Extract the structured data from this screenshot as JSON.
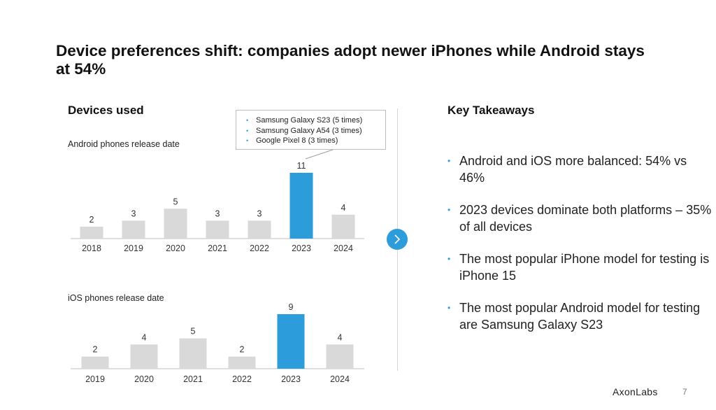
{
  "slide": {
    "title": "Device preferences shift: companies adopt newer iPhones while Android stays at 54%",
    "devices_heading": "Devices used",
    "takeaways_heading": "Key Takeaways",
    "brand": "AxonLabs",
    "page_number": "7"
  },
  "colors": {
    "bar_default": "#d9d9d9",
    "bar_highlight": "#2d9cdb",
    "accent": "#2d9cdb"
  },
  "callout": {
    "items": [
      "Samsung Galaxy S23 (5 times)",
      "Samsung Galaxy A54 (3 times)",
      "Google Pixel 8 (3 times)"
    ]
  },
  "takeaways": [
    "Android and iOS more balanced: 54% vs 46%",
    "2023 devices dominate both platforms – 35% of all devices",
    "The most popular iPhone model for testing is iPhone 15",
    "The most popular Android model for testing are Samsung Galaxy S23"
  ],
  "chart_data": [
    {
      "type": "bar",
      "title": "Android phones release date",
      "categories": [
        "2018",
        "2019",
        "2020",
        "2021",
        "2022",
        "2023",
        "2024"
      ],
      "values": [
        2,
        3,
        5,
        3,
        3,
        11,
        4
      ],
      "highlight": "2023",
      "ylim": [
        0,
        11
      ]
    },
    {
      "type": "bar",
      "title": "iOS phones release date",
      "categories": [
        "2019",
        "2020",
        "2021",
        "2022",
        "2023",
        "2024"
      ],
      "values": [
        2,
        4,
        5,
        2,
        9,
        4
      ],
      "highlight": "2023",
      "ylim": [
        0,
        9
      ]
    }
  ]
}
